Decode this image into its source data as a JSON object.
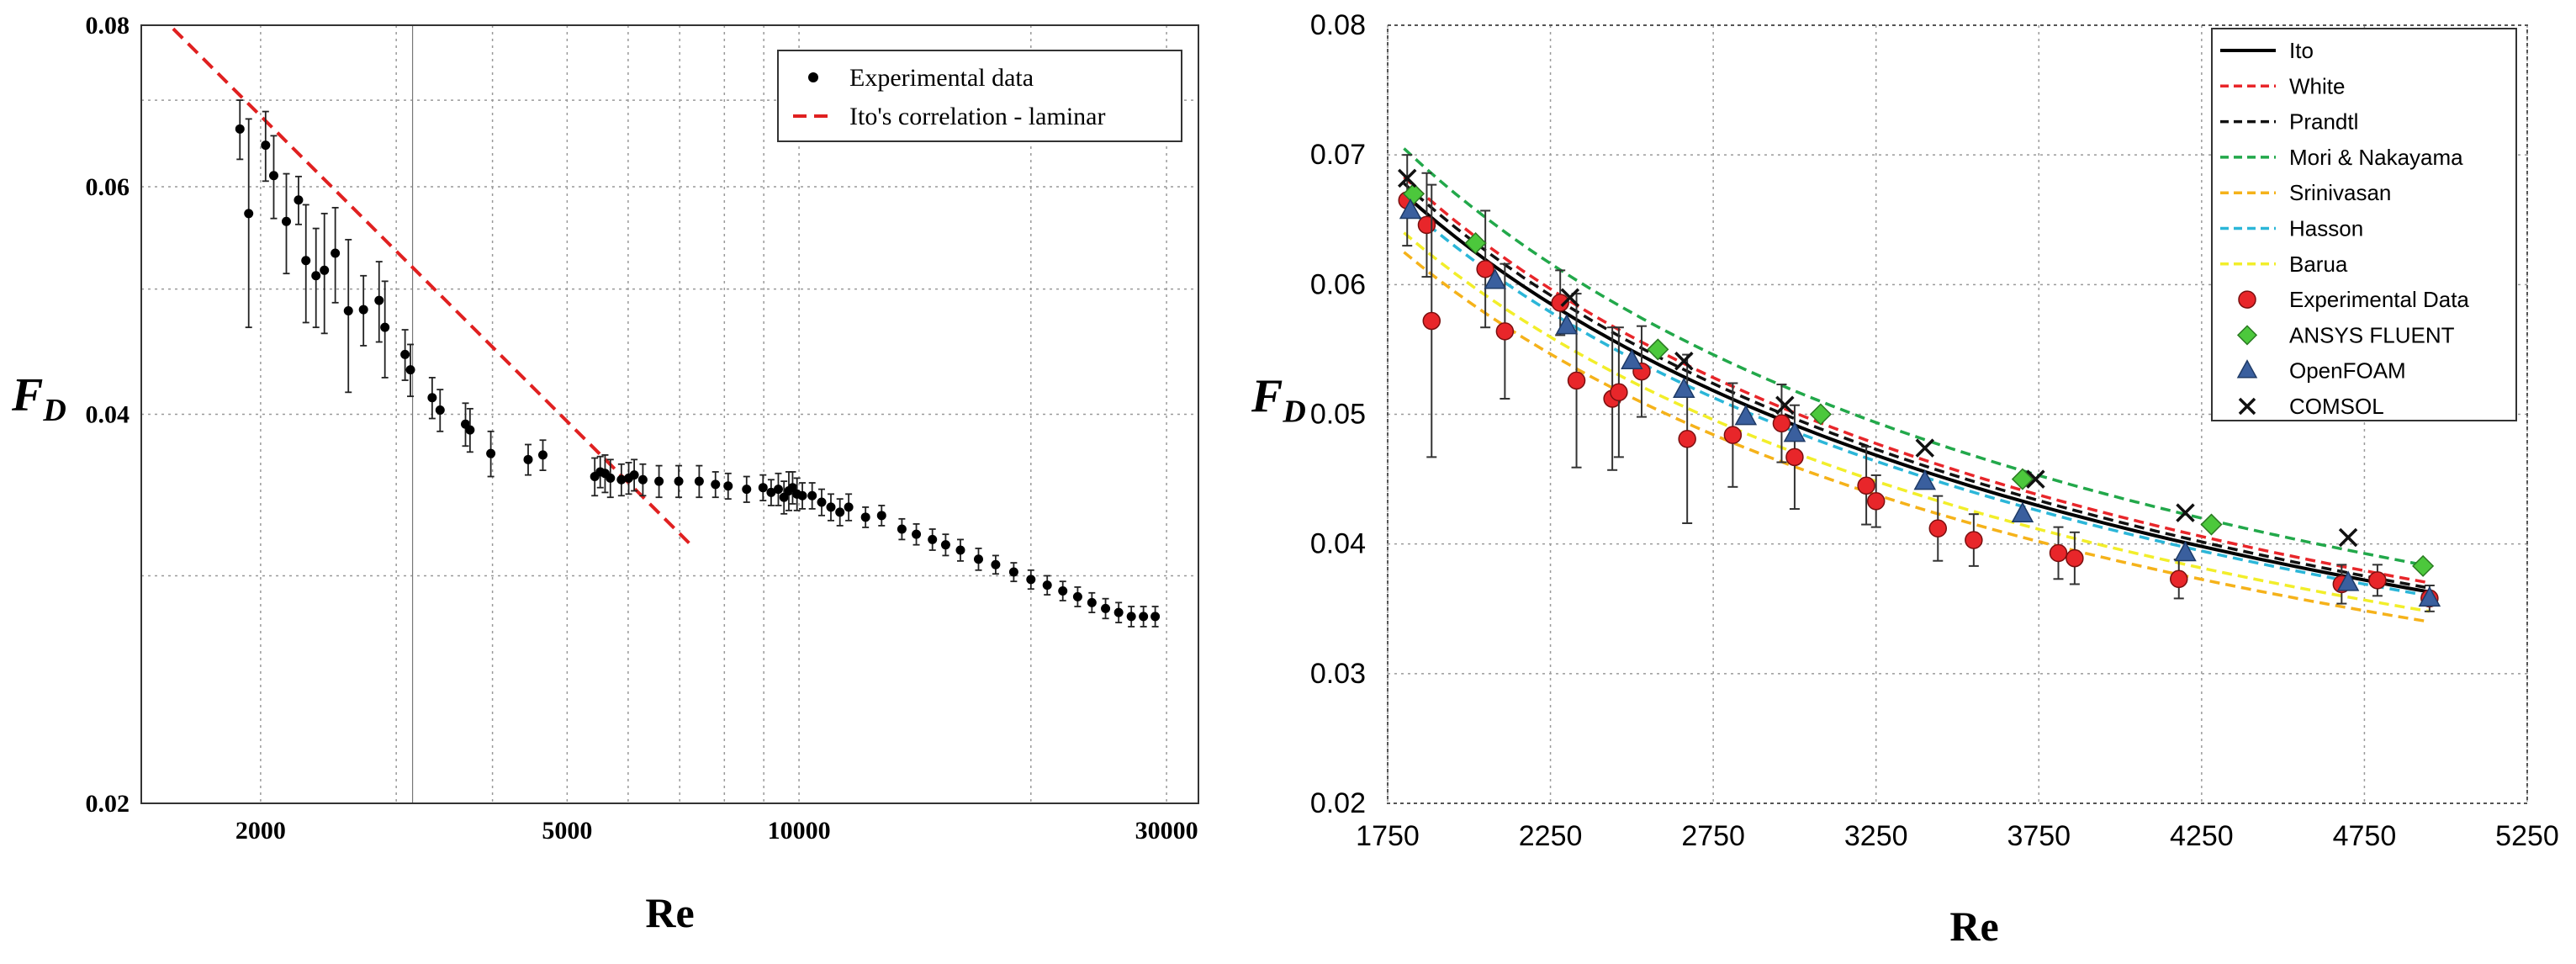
{
  "chart_data": [
    {
      "type": "scatter",
      "title": "",
      "xlabel": "Re",
      "ylabel_main": "F",
      "ylabel_sub": "D",
      "xscale": "log",
      "yscale": "log",
      "xlim": [
        1400,
        33000
      ],
      "ylim": [
        0.02,
        0.08
      ],
      "yticks": [
        {
          "value": 0.02,
          "label": "0.02"
        },
        {
          "value": 0.04,
          "label": "0.04"
        },
        {
          "value": 0.06,
          "label": "0.06"
        },
        {
          "value": 0.08,
          "label": "0.08"
        }
      ],
      "xticks": [
        {
          "value": 2000,
          "label": "2000"
        },
        {
          "value": 5000,
          "label": "5000"
        },
        {
          "value": 10000,
          "label": "10000"
        },
        {
          "value": 30000,
          "label": "30000"
        }
      ],
      "legend_position": "top-right",
      "legend": [
        {
          "label": "Experimental data",
          "marker": "dot",
          "color": "#000000"
        },
        {
          "label": "Ito's correlation - laminar",
          "marker": "dashed-line",
          "color": "#e02020"
        }
      ],
      "line": {
        "name": "Ito's correlation - laminar",
        "x": [
          1540,
          7200
        ],
        "y": [
          0.0795,
          0.0318
        ],
        "color": "#e02020"
      },
      "experimental": {
        "name": "Experimental data",
        "x": [
          1880,
          1930,
          2030,
          2080,
          2160,
          2240,
          2290,
          2360,
          2420,
          2500,
          2600,
          2720,
          2850,
          2900,
          3080,
          3130,
          3340,
          3420,
          3690,
          3740,
          3980,
          4450,
          4650,
          5430,
          5520,
          5600,
          5690,
          5880,
          6010,
          6110,
          6270,
          6580,
          6980,
          7420,
          7790,
          8090,
          8550,
          8980,
          9200,
          9400,
          9560,
          9700,
          9810,
          9940,
          10100,
          10400,
          10700,
          11000,
          11300,
          11600,
          12200,
          12800,
          13600,
          14200,
          14900,
          15500,
          16200,
          17100,
          18000,
          19000,
          20000,
          21000,
          22000,
          23000,
          24000,
          25000,
          26000,
          27000,
          28000,
          29000
        ],
        "y": [
          0.0665,
          0.0572,
          0.0646,
          0.0612,
          0.0564,
          0.0586,
          0.0526,
          0.0512,
          0.0517,
          0.0533,
          0.0481,
          0.0482,
          0.049,
          0.0467,
          0.0445,
          0.0433,
          0.0412,
          0.0403,
          0.0393,
          0.0389,
          0.0373,
          0.0369,
          0.0372,
          0.0358,
          0.0361,
          0.036,
          0.0357,
          0.0356,
          0.0357,
          0.0359,
          0.0356,
          0.0355,
          0.0355,
          0.0355,
          0.0353,
          0.0352,
          0.035,
          0.0351,
          0.0348,
          0.035,
          0.0345,
          0.0349,
          0.0351,
          0.0347,
          0.0346,
          0.0346,
          0.0342,
          0.0339,
          0.0336,
          0.0339,
          0.0333,
          0.0334,
          0.0326,
          0.0323,
          0.032,
          0.0317,
          0.0314,
          0.0309,
          0.0306,
          0.0302,
          0.0298,
          0.0295,
          0.0292,
          0.0289,
          0.0286,
          0.0283,
          0.0281,
          0.0279,
          0.0279,
          0.0279
        ],
        "err": [
          0.0035,
          0.0105,
          0.004,
          0.0045,
          0.005,
          0.0025,
          0.0055,
          0.0045,
          0.0055,
          0.0045,
          0.0065,
          0.003,
          0.0035,
          0.004,
          0.002,
          0.002,
          0.0015,
          0.0015,
          0.0015,
          0.0015,
          0.0015,
          0.001,
          0.001,
          0.0012,
          0.001,
          0.0012,
          0.0012,
          0.001,
          0.001,
          0.001,
          0.001,
          0.001,
          0.001,
          0.001,
          0.0008,
          0.0008,
          0.0008,
          0.0008,
          0.0008,
          0.001,
          0.001,
          0.0012,
          0.001,
          0.001,
          0.0008,
          0.0008,
          0.0008,
          0.0008,
          0.0008,
          0.0008,
          0.0006,
          0.0006,
          0.0006,
          0.0006,
          0.0006,
          0.0006,
          0.0006,
          0.0006,
          0.0005,
          0.0005,
          0.0005,
          0.0005,
          0.0005,
          0.0005,
          0.0005,
          0.0005,
          0.0005,
          0.0005,
          0.0005,
          0.0005
        ]
      }
    },
    {
      "type": "line",
      "title": "",
      "xlabel": "Re",
      "ylabel_main": "F",
      "ylabel_sub": "D",
      "xlim": [
        1750,
        5250
      ],
      "ylim": [
        0.02,
        0.08
      ],
      "xticks": [
        {
          "value": 1750,
          "label": "1750"
        },
        {
          "value": 2250,
          "label": "2250"
        },
        {
          "value": 2750,
          "label": "2750"
        },
        {
          "value": 3250,
          "label": "3250"
        },
        {
          "value": 3750,
          "label": "3750"
        },
        {
          "value": 4250,
          "label": "4250"
        },
        {
          "value": 4750,
          "label": "4750"
        },
        {
          "value": 5250,
          "label": "5250"
        }
      ],
      "yticks": [
        {
          "value": 0.02,
          "label": "0.02"
        },
        {
          "value": 0.03,
          "label": "0.03"
        },
        {
          "value": 0.04,
          "label": "0.04"
        },
        {
          "value": 0.05,
          "label": "0.05"
        },
        {
          "value": 0.06,
          "label": "0.06"
        },
        {
          "value": 0.07,
          "label": "0.07"
        },
        {
          "value": 0.08,
          "label": "0.08"
        }
      ],
      "legend_position": "top-right",
      "curves": [
        {
          "name": "Ito",
          "color": "#000000",
          "dash": "solid",
          "x": [
            1800,
            4950
          ],
          "y": [
            0.067,
            0.0363
          ]
        },
        {
          "name": "White",
          "color": "#e8262a",
          "dash": "dashed",
          "x": [
            1800,
            4950
          ],
          "y": [
            0.0683,
            0.037
          ]
        },
        {
          "name": "Prandtl",
          "color": "#111111",
          "dash": "dashed",
          "x": [
            1800,
            4950
          ],
          "y": [
            0.0678,
            0.0366
          ]
        },
        {
          "name": "Mori & Nakayama",
          "color": "#22a84a",
          "dash": "dashed",
          "x": [
            1800,
            4950
          ],
          "y": [
            0.0705,
            0.0383
          ]
        },
        {
          "name": "Srinivasan",
          "color": "#f5b21a",
          "dash": "dashed",
          "x": [
            1800,
            4950
          ],
          "y": [
            0.0625,
            0.034
          ]
        },
        {
          "name": "Hasson",
          "color": "#2bb6d8",
          "dash": "dashed",
          "x": [
            1800,
            4950
          ],
          "y": [
            0.0662,
            0.036
          ]
        },
        {
          "name": "Barua",
          "color": "#f2ee2a",
          "dash": "dashed",
          "x": [
            1800,
            4950
          ],
          "y": [
            0.064,
            0.0348
          ]
        }
      ],
      "series": [
        {
          "name": "Experimental Data",
          "marker": "circle",
          "color": "#e8262a",
          "x": [
            1810,
            1870,
            1885,
            2050,
            2110,
            2280,
            2330,
            2440,
            2460,
            2530,
            2670,
            2810,
            2960,
            3000,
            3220,
            3250,
            3440,
            3550,
            3810,
            3860,
            4180,
            4680,
            4790,
            4950
          ],
          "y": [
            0.0665,
            0.0646,
            0.0572,
            0.0612,
            0.0564,
            0.0586,
            0.0526,
            0.0512,
            0.0517,
            0.0533,
            0.0481,
            0.0484,
            0.0493,
            0.0467,
            0.0445,
            0.0433,
            0.0412,
            0.0403,
            0.0393,
            0.0389,
            0.0373,
            0.0369,
            0.0372,
            0.0358
          ],
          "err": [
            0.0035,
            0.004,
            0.0105,
            0.0045,
            0.0052,
            0.0025,
            0.0067,
            0.0055,
            0.005,
            0.0035,
            0.0065,
            0.004,
            0.003,
            0.004,
            0.003,
            0.002,
            0.0025,
            0.002,
            0.002,
            0.002,
            0.0015,
            0.0015,
            0.0012,
            0.001
          ]
        },
        {
          "name": "ANSYS FLUENT",
          "marker": "diamond",
          "color": "#4cc83c",
          "x": [
            1830,
            2020,
            2580,
            3080,
            3700,
            4280,
            4930
          ],
          "y": [
            0.067,
            0.0632,
            0.055,
            0.05,
            0.045,
            0.0415,
            0.0383
          ]
        },
        {
          "name": "OpenFOAM",
          "marker": "triangle",
          "color": "#3a5f9e",
          "x": [
            1820,
            2080,
            2300,
            2500,
            2660,
            2850,
            3000,
            3400,
            3700,
            4200,
            4700,
            4950
          ],
          "y": [
            0.0657,
            0.0603,
            0.0568,
            0.0541,
            0.0519,
            0.0498,
            0.0485,
            0.0448,
            0.0423,
            0.0393,
            0.037,
            0.0358
          ]
        },
        {
          "name": "COMSOL",
          "marker": "x",
          "color": "#111111",
          "x": [
            1810,
            2310,
            2660,
            2970,
            3400,
            3740,
            4200,
            4700
          ],
          "y": [
            0.0682,
            0.059,
            0.0541,
            0.0507,
            0.0474,
            0.045,
            0.0424,
            0.0405
          ]
        }
      ],
      "legend": [
        {
          "label": "Ito",
          "marker": "solid-line",
          "color": "#000000"
        },
        {
          "label": "White",
          "marker": "dashed-line",
          "color": "#e8262a"
        },
        {
          "label": "Prandtl",
          "marker": "dashed-line",
          "color": "#111111"
        },
        {
          "label": "Mori & Nakayama",
          "marker": "dashed-line",
          "color": "#22a84a"
        },
        {
          "label": "Srinivasan",
          "marker": "dashed-line",
          "color": "#f5b21a"
        },
        {
          "label": "Hasson",
          "marker": "dashed-line",
          "color": "#2bb6d8"
        },
        {
          "label": "Barua",
          "marker": "dashed-line",
          "color": "#f2ee2a"
        },
        {
          "label": "Experimental Data",
          "marker": "circle",
          "color": "#e8262a"
        },
        {
          "label": "ANSYS FLUENT",
          "marker": "diamond",
          "color": "#4cc83c"
        },
        {
          "label": "OpenFOAM",
          "marker": "triangle",
          "color": "#3a5f9e"
        },
        {
          "label": "COMSOL",
          "marker": "x",
          "color": "#111111"
        }
      ]
    }
  ]
}
